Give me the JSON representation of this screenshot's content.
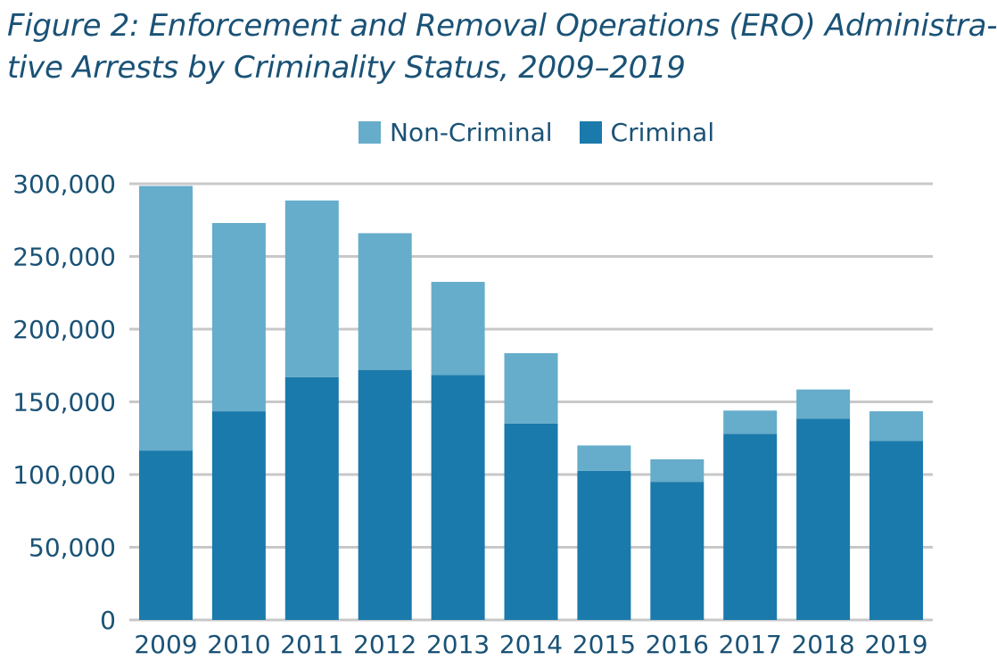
{
  "chart_data": {
    "type": "bar",
    "stacked": true,
    "title_line1": "Figure 2: Enforcement and Removal Operations (ERO) Administra-",
    "title_line2": "tive Arrests by Criminality Status, 2009–2019",
    "xlabel": "",
    "ylabel": "",
    "ylim": [
      0,
      300000
    ],
    "yticks": [
      0,
      50000,
      100000,
      150000,
      200000,
      250000,
      300000
    ],
    "ytick_labels": [
      "0",
      "50,000",
      "100,000",
      "150,000",
      "200,000",
      "250,000",
      "300,000"
    ],
    "grid": true,
    "legend_position": "top-center",
    "categories": [
      "2009",
      "2010",
      "2011",
      "2012",
      "2013",
      "2014",
      "2015",
      "2016",
      "2017",
      "2018",
      "2019"
    ],
    "series": [
      {
        "name": "Criminal",
        "color": "#1a7aab",
        "values": [
          116500,
          143500,
          167000,
          172000,
          168500,
          135000,
          102500,
          95000,
          128000,
          138500,
          123000
        ]
      },
      {
        "name": "Non-Criminal",
        "color": "#66accb",
        "values": [
          182000,
          129500,
          121500,
          94000,
          64000,
          48500,
          17500,
          15500,
          16000,
          20000,
          20500
        ]
      }
    ],
    "legend": [
      "Non-Criminal",
      "Criminal"
    ]
  }
}
